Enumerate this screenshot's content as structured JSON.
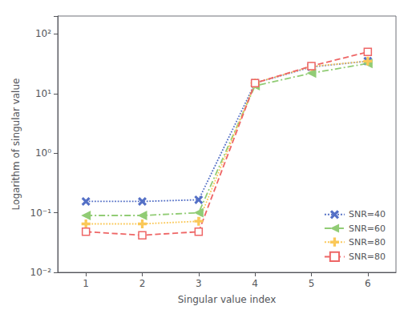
{
  "chart_data": {
    "type": "line",
    "xlabel": "Singular value index",
    "ylabel": "Logarithm of singular value",
    "x": [
      1,
      2,
      3,
      4,
      5,
      6
    ],
    "xlim": [
      0.5,
      6.5
    ],
    "xticks": [
      1,
      2,
      3,
      4,
      5,
      6
    ],
    "ylim": [
      0.01,
      200
    ],
    "yticks": [
      {
        "value": 0.01,
        "label": "10⁻²"
      },
      {
        "value": 0.1,
        "label": "10⁻¹"
      },
      {
        "value": 1,
        "label": "10⁰"
      },
      {
        "value": 10,
        "label": "10¹"
      },
      {
        "value": 100,
        "label": "10²"
      }
    ],
    "log": "y",
    "grid": false,
    "legend": "lower right",
    "series": [
      {
        "name": "SNR=40",
        "values": [
          0.155,
          0.155,
          0.165,
          15.0,
          28.0,
          35.0
        ],
        "marker": "x",
        "line_style": "dotted"
      },
      {
        "name": "SNR=60",
        "values": [
          0.09,
          0.09,
          0.1,
          13.5,
          22.0,
          32.0
        ],
        "marker": "triangle-left",
        "line_style": "dashdot"
      },
      {
        "name": "SNR=80",
        "values": [
          0.065,
          0.065,
          0.072,
          15.0,
          28.5,
          35.0
        ],
        "marker": "plus",
        "line_style": "dotted"
      },
      {
        "name": "SNR=80",
        "values": [
          0.048,
          0.042,
          0.048,
          15.0,
          29.0,
          50.0
        ],
        "marker": "square-open",
        "line_style": "dashed"
      }
    ]
  }
}
